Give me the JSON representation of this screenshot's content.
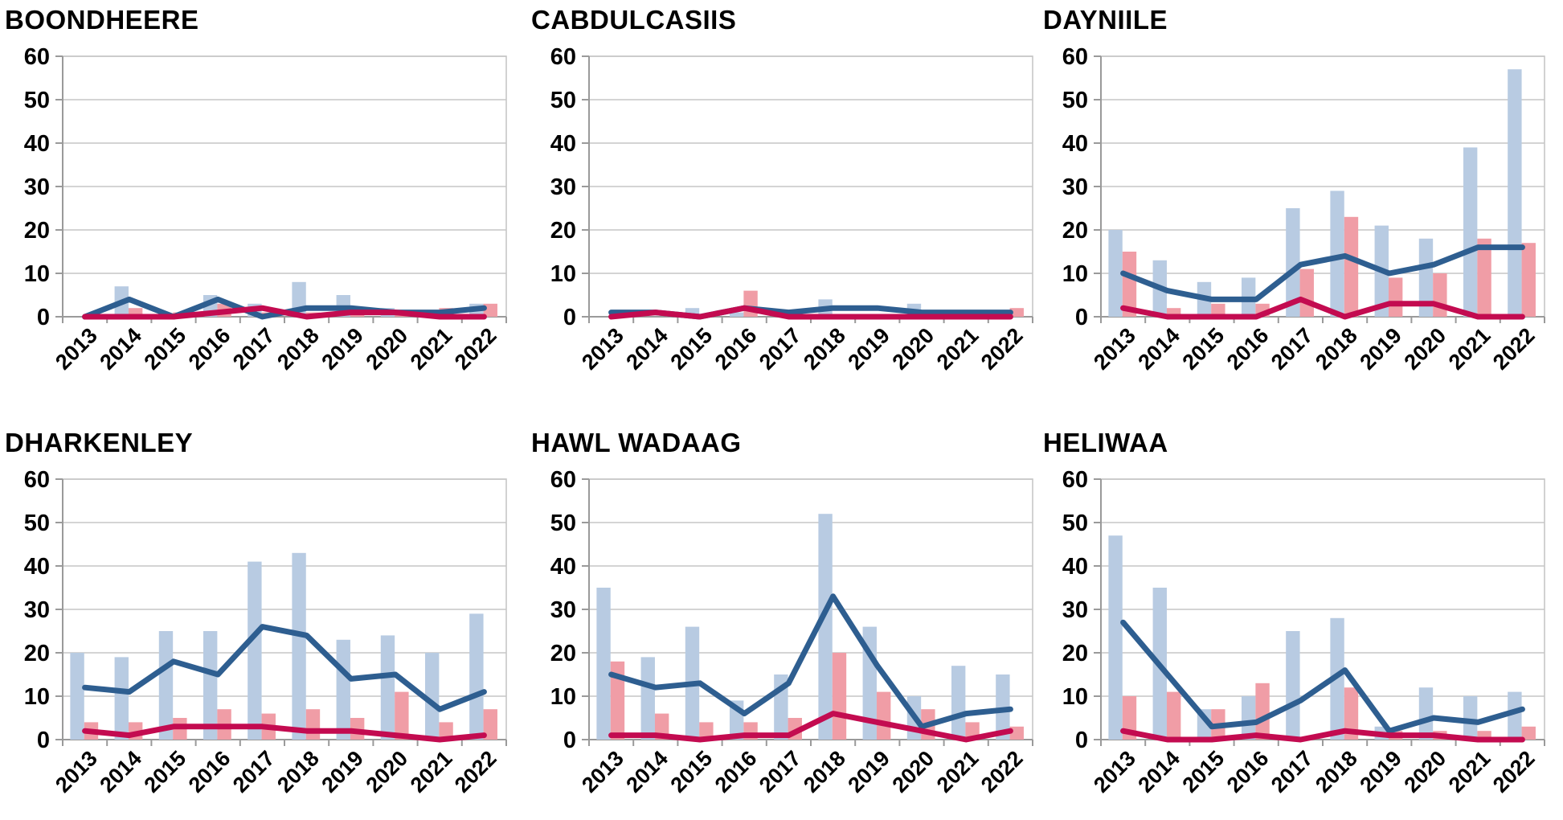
{
  "page": {
    "background": "#FFFFFF",
    "description_visible_text_only": true
  },
  "colors": {
    "bar_primary": "#B8CBE2",
    "bar_secondary": "#F09DA6",
    "line_primary": "#2E5E90",
    "line_secondary": "#C30B50",
    "gridline": "#C6C6C6",
    "axis": "#9A9A9A",
    "text": "#000000"
  },
  "chart_data": [
    {
      "type": "bar",
      "subtype": "bars-with-lines",
      "title": "BOONDHEERE",
      "categories": [
        "2013",
        "2014",
        "2015",
        "2016",
        "2017",
        "2018",
        "2019",
        "2020",
        "2021",
        "2022"
      ],
      "ylim": [
        0,
        60
      ],
      "yticks": [
        0,
        10,
        20,
        30,
        40,
        50,
        60
      ],
      "grid": true,
      "legend": "none",
      "series": [
        {
          "name": "bar-primary",
          "type": "bar",
          "color": "#B8CBE2",
          "values": [
            0,
            7,
            0,
            5,
            3,
            8,
            5,
            2,
            1,
            3
          ]
        },
        {
          "name": "bar-secondary",
          "type": "bar",
          "color": "#F09DA6",
          "values": [
            0,
            2,
            1,
            3,
            1,
            1,
            2,
            1,
            2,
            3
          ]
        },
        {
          "name": "line-primary",
          "type": "line",
          "color": "#2E5E90",
          "values": [
            0,
            4,
            0,
            4,
            0,
            2,
            2,
            1,
            1,
            2
          ]
        },
        {
          "name": "line-secondary",
          "type": "line",
          "color": "#C30B50",
          "values": [
            0,
            0,
            0,
            1,
            2,
            0,
            1,
            1,
            0,
            0
          ]
        }
      ]
    },
    {
      "type": "bar",
      "subtype": "bars-with-lines",
      "title": "CABDULCASIIS",
      "categories": [
        "2013",
        "2014",
        "2015",
        "2016",
        "2017",
        "2018",
        "2019",
        "2020",
        "2021",
        "2022"
      ],
      "ylim": [
        0,
        60
      ],
      "yticks": [
        0,
        10,
        20,
        30,
        40,
        50,
        60
      ],
      "grid": true,
      "legend": "none",
      "series": [
        {
          "name": "bar-primary",
          "type": "bar",
          "color": "#B8CBE2",
          "values": [
            0,
            0,
            2,
            1,
            0,
            4,
            0,
            3,
            0,
            1
          ]
        },
        {
          "name": "bar-secondary",
          "type": "bar",
          "color": "#F09DA6",
          "values": [
            0,
            0,
            0,
            6,
            1,
            0,
            0,
            1,
            0,
            2
          ]
        },
        {
          "name": "line-primary",
          "type": "line",
          "color": "#2E5E90",
          "values": [
            1,
            1,
            0,
            2,
            1,
            2,
            2,
            1,
            1,
            1
          ]
        },
        {
          "name": "line-secondary",
          "type": "line",
          "color": "#C30B50",
          "values": [
            0,
            1,
            0,
            2,
            0,
            0,
            0,
            0,
            0,
            0
          ]
        }
      ]
    },
    {
      "type": "bar",
      "subtype": "bars-with-lines",
      "title": "DAYNIILE",
      "categories": [
        "2013",
        "2014",
        "2015",
        "2016",
        "2017",
        "2018",
        "2019",
        "2020",
        "2021",
        "2022"
      ],
      "ylim": [
        0,
        60
      ],
      "yticks": [
        0,
        10,
        20,
        30,
        40,
        50,
        60
      ],
      "grid": true,
      "legend": "none",
      "series": [
        {
          "name": "bar-primary",
          "type": "bar",
          "color": "#B8CBE2",
          "values": [
            20,
            13,
            8,
            9,
            25,
            29,
            21,
            18,
            39,
            57
          ]
        },
        {
          "name": "bar-secondary",
          "type": "bar",
          "color": "#F09DA6",
          "values": [
            15,
            2,
            3,
            3,
            11,
            23,
            9,
            10,
            18,
            17
          ]
        },
        {
          "name": "line-primary",
          "type": "line",
          "color": "#2E5E90",
          "values": [
            10,
            6,
            4,
            4,
            12,
            14,
            10,
            12,
            16,
            16
          ]
        },
        {
          "name": "line-secondary",
          "type": "line",
          "color": "#C30B50",
          "values": [
            2,
            0,
            0,
            0,
            4,
            0,
            3,
            3,
            0,
            0
          ]
        }
      ]
    },
    {
      "type": "bar",
      "subtype": "bars-with-lines",
      "title": "DHARKENLEY",
      "categories": [
        "2013",
        "2014",
        "2015",
        "2016",
        "2017",
        "2018",
        "2019",
        "2020",
        "2021",
        "2022"
      ],
      "ylim": [
        0,
        60
      ],
      "yticks": [
        0,
        10,
        20,
        30,
        40,
        50,
        60
      ],
      "grid": true,
      "legend": "none",
      "series": [
        {
          "name": "bar-primary",
          "type": "bar",
          "color": "#B8CBE2",
          "values": [
            20,
            19,
            25,
            25,
            41,
            43,
            23,
            24,
            20,
            29
          ]
        },
        {
          "name": "bar-secondary",
          "type": "bar",
          "color": "#F09DA6",
          "values": [
            4,
            4,
            5,
            7,
            6,
            7,
            5,
            11,
            4,
            7
          ]
        },
        {
          "name": "line-primary",
          "type": "line",
          "color": "#2E5E90",
          "values": [
            12,
            11,
            18,
            15,
            26,
            24,
            14,
            15,
            7,
            11
          ]
        },
        {
          "name": "line-secondary",
          "type": "line",
          "color": "#C30B50",
          "values": [
            2,
            1,
            3,
            3,
            3,
            2,
            2,
            1,
            0,
            1
          ]
        }
      ]
    },
    {
      "type": "bar",
      "subtype": "bars-with-lines",
      "title": "HAWL WADAAG",
      "categories": [
        "2013",
        "2014",
        "2015",
        "2016",
        "2017",
        "2018",
        "2019",
        "2020",
        "2021",
        "2022"
      ],
      "ylim": [
        0,
        60
      ],
      "yticks": [
        0,
        10,
        20,
        30,
        40,
        50,
        60
      ],
      "grid": true,
      "legend": "none",
      "series": [
        {
          "name": "bar-primary",
          "type": "bar",
          "color": "#B8CBE2",
          "values": [
            35,
            19,
            26,
            9,
            15,
            52,
            26,
            10,
            17,
            15
          ]
        },
        {
          "name": "bar-secondary",
          "type": "bar",
          "color": "#F09DA6",
          "values": [
            18,
            6,
            4,
            4,
            5,
            20,
            11,
            7,
            4,
            3
          ]
        },
        {
          "name": "line-primary",
          "type": "line",
          "color": "#2E5E90",
          "values": [
            15,
            12,
            13,
            6,
            13,
            33,
            17,
            3,
            6,
            7
          ]
        },
        {
          "name": "line-secondary",
          "type": "line",
          "color": "#C30B50",
          "values": [
            1,
            1,
            0,
            1,
            1,
            6,
            4,
            2,
            0,
            2
          ]
        }
      ]
    },
    {
      "type": "bar",
      "subtype": "bars-with-lines",
      "title": "HELIWAA",
      "categories": [
        "2013",
        "2014",
        "2015",
        "2016",
        "2017",
        "2018",
        "2019",
        "2020",
        "2021",
        "2022"
      ],
      "ylim": [
        0,
        60
      ],
      "yticks": [
        0,
        10,
        20,
        30,
        40,
        50,
        60
      ],
      "grid": true,
      "legend": "none",
      "series": [
        {
          "name": "bar-primary",
          "type": "bar",
          "color": "#B8CBE2",
          "values": [
            47,
            35,
            7,
            10,
            25,
            28,
            3,
            12,
            10,
            11
          ]
        },
        {
          "name": "bar-secondary",
          "type": "bar",
          "color": "#F09DA6",
          "values": [
            10,
            11,
            7,
            13,
            0,
            12,
            2,
            2,
            2,
            3
          ]
        },
        {
          "name": "line-primary",
          "type": "line",
          "color": "#2E5E90",
          "values": [
            27,
            15,
            3,
            4,
            9,
            16,
            2,
            5,
            4,
            7
          ]
        },
        {
          "name": "line-secondary",
          "type": "line",
          "color": "#C30B50",
          "values": [
            2,
            0,
            0,
            1,
            0,
            2,
            1,
            1,
            0,
            0
          ]
        }
      ]
    }
  ]
}
